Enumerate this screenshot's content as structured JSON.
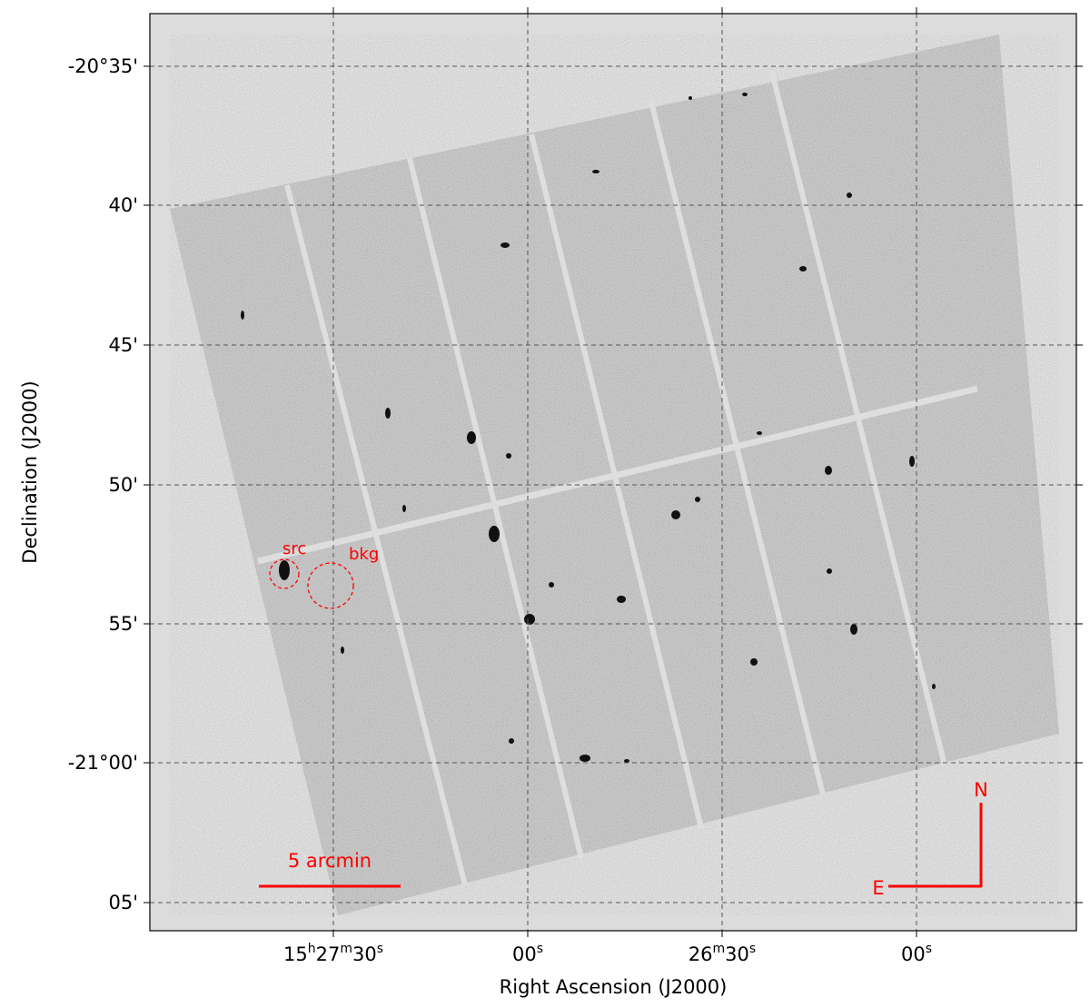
{
  "axes": {
    "x_label": "Right Ascension (J2000)",
    "y_label": "Declination (J2000)",
    "x_ticks": [
      {
        "main": "15",
        "sup1": "h",
        "mid": "27",
        "sup2": "m",
        "end": "30",
        "sup3": "s"
      },
      {
        "main": "",
        "sup1": "",
        "mid": "",
        "sup2": "",
        "end": "00",
        "sup3": "s"
      },
      {
        "main": "",
        "sup1": "",
        "mid": "26",
        "sup2": "m",
        "end": "30",
        "sup3": "s"
      },
      {
        "main": "",
        "sup1": "",
        "mid": "",
        "sup2": "",
        "end": "00",
        "sup3": "s"
      }
    ],
    "y_ticks": [
      "-20°35'",
      "40'",
      "45'",
      "50'",
      "55'",
      "-21°00'",
      "05'"
    ],
    "grid": true
  },
  "annotations": {
    "src_label": "src",
    "bkg_label": "bkg",
    "scale_bar_label": "5 arcmin",
    "north_label": "N",
    "east_label": "E",
    "color": "#ff0000"
  },
  "colors": {
    "background": "#dcdcdc",
    "grid": "#555555",
    "chip_gap": "#dedede"
  }
}
